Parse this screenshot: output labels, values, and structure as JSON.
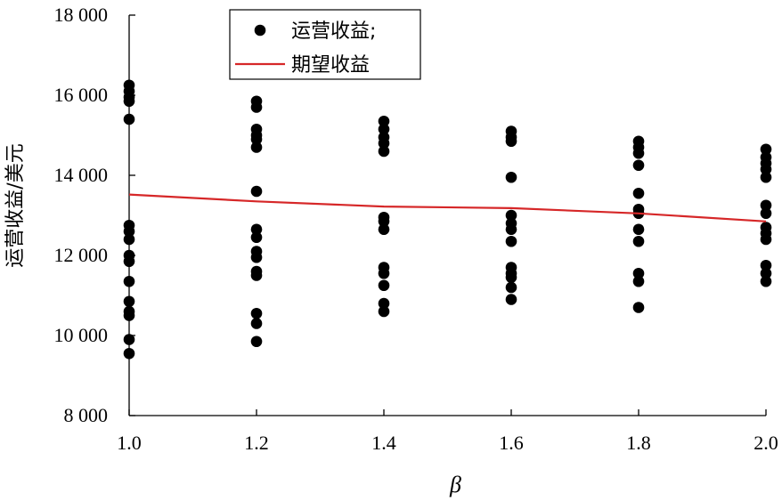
{
  "chart_data": {
    "type": "scatter",
    "xlabel": "β",
    "ylabel": "运营收益/美元",
    "xlim": [
      1.0,
      2.0
    ],
    "ylim": [
      8000,
      18000
    ],
    "x_ticks": [
      1.0,
      1.2,
      1.4,
      1.6,
      1.8,
      2.0
    ],
    "x_tick_labels": [
      "1.0",
      "1.2",
      "1.4",
      "1.6",
      "1.8",
      "2.0"
    ],
    "y_ticks": [
      8000,
      10000,
      12000,
      14000,
      16000,
      18000
    ],
    "y_tick_labels": [
      "8 000",
      "10 000",
      "12 000",
      "14 000",
      "16 000",
      "18 000"
    ],
    "grid": false,
    "legend_position": "top-center",
    "series": [
      {
        "name": "运营收益;",
        "kind": "scatter",
        "color": "#000000",
        "points": [
          [
            1.0,
            16250
          ],
          [
            1.0,
            16100
          ],
          [
            1.0,
            15950
          ],
          [
            1.0,
            15850
          ],
          [
            1.0,
            15400
          ],
          [
            1.0,
            12750
          ],
          [
            1.0,
            12600
          ],
          [
            1.0,
            12400
          ],
          [
            1.0,
            12000
          ],
          [
            1.0,
            11850
          ],
          [
            1.0,
            11350
          ],
          [
            1.0,
            10850
          ],
          [
            1.0,
            10600
          ],
          [
            1.0,
            10500
          ],
          [
            1.0,
            9900
          ],
          [
            1.0,
            9550
          ],
          [
            1.2,
            15850
          ],
          [
            1.2,
            15700
          ],
          [
            1.2,
            15150
          ],
          [
            1.2,
            15000
          ],
          [
            1.2,
            14900
          ],
          [
            1.2,
            14700
          ],
          [
            1.2,
            13600
          ],
          [
            1.2,
            12650
          ],
          [
            1.2,
            12450
          ],
          [
            1.2,
            12100
          ],
          [
            1.2,
            11950
          ],
          [
            1.2,
            11600
          ],
          [
            1.2,
            11500
          ],
          [
            1.2,
            10550
          ],
          [
            1.2,
            10300
          ],
          [
            1.2,
            9850
          ],
          [
            1.4,
            15350
          ],
          [
            1.4,
            15150
          ],
          [
            1.4,
            14950
          ],
          [
            1.4,
            14800
          ],
          [
            1.4,
            14600
          ],
          [
            1.4,
            12950
          ],
          [
            1.4,
            12850
          ],
          [
            1.4,
            12650
          ],
          [
            1.4,
            11700
          ],
          [
            1.4,
            11550
          ],
          [
            1.4,
            11250
          ],
          [
            1.4,
            10800
          ],
          [
            1.4,
            10600
          ],
          [
            1.6,
            15100
          ],
          [
            1.6,
            14950
          ],
          [
            1.6,
            14850
          ],
          [
            1.6,
            13950
          ],
          [
            1.6,
            13000
          ],
          [
            1.6,
            12800
          ],
          [
            1.6,
            12650
          ],
          [
            1.6,
            12350
          ],
          [
            1.6,
            11700
          ],
          [
            1.6,
            11550
          ],
          [
            1.6,
            11450
          ],
          [
            1.6,
            11200
          ],
          [
            1.6,
            10900
          ],
          [
            1.8,
            14850
          ],
          [
            1.8,
            14700
          ],
          [
            1.8,
            14550
          ],
          [
            1.8,
            14250
          ],
          [
            1.8,
            13550
          ],
          [
            1.8,
            13150
          ],
          [
            1.8,
            13050
          ],
          [
            1.8,
            12650
          ],
          [
            1.8,
            12350
          ],
          [
            1.8,
            11550
          ],
          [
            1.8,
            11350
          ],
          [
            1.8,
            10700
          ],
          [
            2.0,
            14650
          ],
          [
            2.0,
            14450
          ],
          [
            2.0,
            14300
          ],
          [
            2.0,
            14150
          ],
          [
            2.0,
            13950
          ],
          [
            2.0,
            13250
          ],
          [
            2.0,
            13050
          ],
          [
            2.0,
            12700
          ],
          [
            2.0,
            12550
          ],
          [
            2.0,
            12400
          ],
          [
            2.0,
            11750
          ],
          [
            2.0,
            11550
          ],
          [
            2.0,
            11350
          ]
        ]
      },
      {
        "name": "期望收益",
        "kind": "line",
        "color": "#d62728",
        "x": [
          1.0,
          1.2,
          1.4,
          1.6,
          1.8,
          2.0
        ],
        "y": [
          13520,
          13350,
          13220,
          13180,
          13050,
          12850
        ]
      }
    ]
  }
}
